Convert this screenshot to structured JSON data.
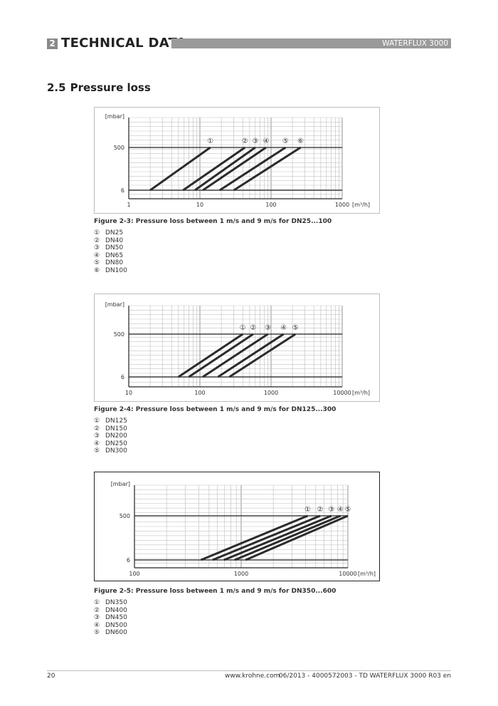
{
  "header": {
    "chapter_number": "2",
    "chapter_title": "TECHNICAL DATA",
    "product": "WATERFLUX 3000"
  },
  "section": {
    "number": "2.5",
    "title": "Pressure loss"
  },
  "figures": [
    {
      "caption": "Figure 2-3: Pressure loss between 1 m/s and 9 m/s for DN25...100",
      "legend": [
        {
          "marker": "①",
          "label": "DN25"
        },
        {
          "marker": "②",
          "label": "DN40"
        },
        {
          "marker": "③",
          "label": "DN50"
        },
        {
          "marker": "④",
          "label": "DN65"
        },
        {
          "marker": "⑤",
          "label": "DN80"
        },
        {
          "marker": "⑥",
          "label": "DN100"
        }
      ]
    },
    {
      "caption": "Figure 2-4: Pressure loss between 1 m/s and 9 m/s for DN125...300",
      "legend": [
        {
          "marker": "①",
          "label": "DN125"
        },
        {
          "marker": "②",
          "label": "DN150"
        },
        {
          "marker": "③",
          "label": "DN200"
        },
        {
          "marker": "④",
          "label": "DN250"
        },
        {
          "marker": "⑤",
          "label": "DN300"
        }
      ]
    },
    {
      "caption": "Figure 2-5: Pressure loss between 1 m/s and 9 m/s for DN350...600",
      "legend": [
        {
          "marker": "①",
          "label": "DN350"
        },
        {
          "marker": "②",
          "label": "DN400"
        },
        {
          "marker": "③",
          "label": "DN450"
        },
        {
          "marker": "④",
          "label": "DN500"
        },
        {
          "marker": "⑤",
          "label": "DN600"
        }
      ]
    }
  ],
  "chart_data": [
    {
      "type": "line",
      "x_scale": "log",
      "x_range": [
        1,
        1000
      ],
      "x_ticks": [
        "1",
        "10",
        "100",
        "1000"
      ],
      "x_unit": "[m³/h]",
      "y_unit": "[mbar]",
      "y_ticks": [
        "500",
        "6"
      ],
      "series": [
        {
          "marker": "①",
          "x": [
            2,
            14
          ],
          "y": [
            6,
            500
          ]
        },
        {
          "marker": "②",
          "x": [
            5.8,
            43
          ],
          "y": [
            6,
            500
          ]
        },
        {
          "marker": "③",
          "x": [
            8.5,
            60
          ],
          "y": [
            6,
            500
          ]
        },
        {
          "marker": "④",
          "x": [
            11,
            85
          ],
          "y": [
            6,
            500
          ]
        },
        {
          "marker": "⑤",
          "x": [
            19,
            160
          ],
          "y": [
            6,
            500
          ]
        },
        {
          "marker": "⑥",
          "x": [
            30,
            260
          ],
          "y": [
            6,
            500
          ]
        }
      ]
    },
    {
      "type": "line",
      "x_scale": "log",
      "x_range": [
        10,
        10000
      ],
      "x_ticks": [
        "10",
        "100",
        "1000",
        "10000"
      ],
      "x_unit": "[m³/h]",
      "y_unit": "[mbar]",
      "y_ticks": [
        "500",
        "6"
      ],
      "series": [
        {
          "marker": "①",
          "x": [
            50,
            400
          ],
          "y": [
            6,
            500
          ]
        },
        {
          "marker": "②",
          "x": [
            70,
            560
          ],
          "y": [
            6,
            500
          ]
        },
        {
          "marker": "③",
          "x": [
            110,
            900
          ],
          "y": [
            6,
            500
          ]
        },
        {
          "marker": "④",
          "x": [
            180,
            1500
          ],
          "y": [
            6,
            500
          ]
        },
        {
          "marker": "⑤",
          "x": [
            260,
            2200
          ],
          "y": [
            6,
            500
          ]
        }
      ]
    },
    {
      "type": "line",
      "x_scale": "log",
      "x_range": [
        100,
        10000
      ],
      "x_ticks": [
        "100",
        "1000",
        "10000"
      ],
      "x_unit": "[m³/h]",
      "y_unit": "[mbar]",
      "y_ticks": [
        "500",
        "6"
      ],
      "series": [
        {
          "marker": "①",
          "x": [
            420,
            4200
          ],
          "y": [
            6,
            500
          ]
        },
        {
          "marker": "②",
          "x": [
            540,
            5500
          ],
          "y": [
            6,
            500
          ]
        },
        {
          "marker": "③",
          "x": [
            690,
            7000
          ],
          "y": [
            6,
            500
          ]
        },
        {
          "marker": "④",
          "x": [
            870,
            8500
          ],
          "y": [
            6,
            500
          ]
        },
        {
          "marker": "⑤",
          "x": [
            1100,
            10000
          ],
          "y": [
            6,
            500
          ]
        }
      ]
    }
  ],
  "footer": {
    "page_number": "20",
    "url": "www.krohne.com",
    "document_ref": "06/2013 - 4000572003 - TD WATERFLUX 3000 R03 en"
  }
}
